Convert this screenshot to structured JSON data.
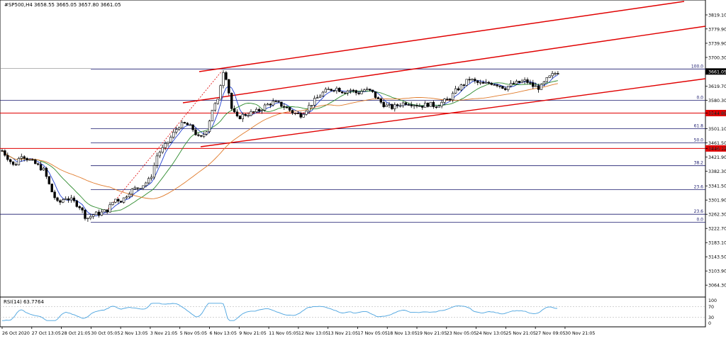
{
  "header": {
    "title": "#SP500,H4  3658.55 3665.05 3657.80 3661.05"
  },
  "rsi_label": "RSI(14) 63.7764",
  "chart_data": {
    "type": "candlestick",
    "symbol": "#SP500",
    "timeframe": "H4",
    "ohlc_header": {
      "open": 3658.55,
      "high": 3665.05,
      "low": 3657.8,
      "close": 3661.05
    },
    "ylim": [
      3045,
      3885
    ],
    "price_ticks": [
      "3819.10",
      "3779.90",
      "3739.90",
      "3700.30",
      "3661.05",
      "3619.70",
      "3580.30",
      "3544.89",
      "3501.10",
      "3461.50",
      "3446.12",
      "3421.90",
      "3382.30",
      "3341.50",
      "3301.90",
      "3262.30",
      "3222.70",
      "3183.10",
      "3143.50",
      "3103.90",
      "3064.30"
    ],
    "time_ticks": [
      "26 Oct 2020",
      "27 Oct 13:05",
      "28 Oct 21:05",
      "30 Oct 05:05",
      "2 Nov 13:05",
      "3 Nov 21:05",
      "5 Nov 05:05",
      "6 Nov 13:05",
      "9 Nov 21:05",
      "11 Nov 05:05",
      "12 Nov 13:05",
      "13 Nov 21:05",
      "17 Nov 05:05",
      "18 Nov 13:05",
      "19 Nov 21:05",
      "23 Nov 05:05",
      "24 Nov 13:05",
      "25 Nov 21:05",
      "27 Nov 09:05",
      "30 Nov 21:05"
    ],
    "current_price": {
      "label": "3661.05",
      "value": 3661.05
    },
    "horizontal_lines": [
      {
        "label": "3544.89",
        "value": 3544.89,
        "color": "#e00000"
      },
      {
        "label": "3446.12",
        "value": 3446.12,
        "color": "#e00000"
      }
    ],
    "fib_levels": [
      {
        "label": "100.0",
        "value": 3668.0
      },
      {
        "label": "0.0",
        "value": 3580.3
      },
      {
        "label": "61.8",
        "value": 3501.1
      },
      {
        "label": "50.0",
        "value": 3461.5
      },
      {
        "label": "38.2",
        "value": 3398.0
      },
      {
        "label": "23.6",
        "value": 3331.0
      },
      {
        "label": "23.6",
        "value": 3262.3
      },
      {
        "label": "0.0",
        "value": 3240.0
      }
    ],
    "rsi": {
      "name": "RSI(14)",
      "value": 63.7764,
      "levels": [
        "70",
        "30"
      ],
      "top": "100",
      "bottom": "0"
    },
    "colors": {
      "channel": "#e00000",
      "fib": "#1a1a6e",
      "ma_fast": "#1f3fd0",
      "ma_mid": "#2e8b2e",
      "ma_slow": "#e07a2a",
      "rsi": "#4aa3df"
    }
  }
}
